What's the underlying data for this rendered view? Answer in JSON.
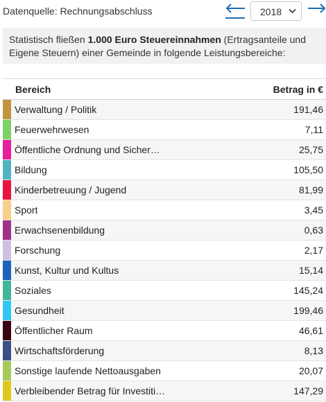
{
  "header": {
    "source_label": "Datenquelle: Rechnungsabschluss",
    "year": "2018"
  },
  "info": {
    "text_before": "Statistisch fließen ",
    "text_bold": "1.000 Euro Steuereinnahmen",
    "text_after": " (Ertragsanteile und Eigene Steuern) einer Gemeinde in folgende Leistungsbereiche:"
  },
  "table": {
    "col_area": "Bereich",
    "col_amount": "Betrag in €",
    "rows": [
      {
        "label": "Verwaltung / Politik",
        "amount": "191,46",
        "color": "#c1953b"
      },
      {
        "label": "Feuerwehrwesen",
        "amount": "7,11",
        "color": "#7dd365"
      },
      {
        "label": "Öffentliche Ordnung und Sicher…",
        "amount": "25,75",
        "color": "#e81d9b"
      },
      {
        "label": "Bildung",
        "amount": "105,50",
        "color": "#4fb3c1"
      },
      {
        "label": "Kinderbetreuung / Jugend",
        "amount": "81,99",
        "color": "#e8163f"
      },
      {
        "label": "Sport",
        "amount": "3,45",
        "color": "#f9cf89"
      },
      {
        "label": "Erwachsenenbildung",
        "amount": "0,63",
        "color": "#a0318a"
      },
      {
        "label": "Forschung",
        "amount": "2,17",
        "color": "#cfbfe0"
      },
      {
        "label": "Kunst, Kultur und Kultus",
        "amount": "15,14",
        "color": "#1d64b9"
      },
      {
        "label": "Soziales",
        "amount": "145,24",
        "color": "#3fb89a"
      },
      {
        "label": "Gesundheit",
        "amount": "199,46",
        "color": "#33c6f2"
      },
      {
        "label": "Öffentlicher Raum",
        "amount": "46,61",
        "color": "#3b0410"
      },
      {
        "label": "Wirtschaftsförderung",
        "amount": "8,13",
        "color": "#3d5086"
      },
      {
        "label": "Sonstige laufende Nettoausgaben",
        "amount": "20,07",
        "color": "#a9c95a"
      },
      {
        "label": "Verbleibender Betrag für Investiti…",
        "amount": "147,29",
        "color": "#e0c719"
      }
    ]
  },
  "icons": {
    "prev": "arrow-left-icon",
    "next": "arrow-right-icon",
    "dropdown": "chevron-down-icon"
  },
  "colors": {
    "accent": "#1f6bb5"
  }
}
